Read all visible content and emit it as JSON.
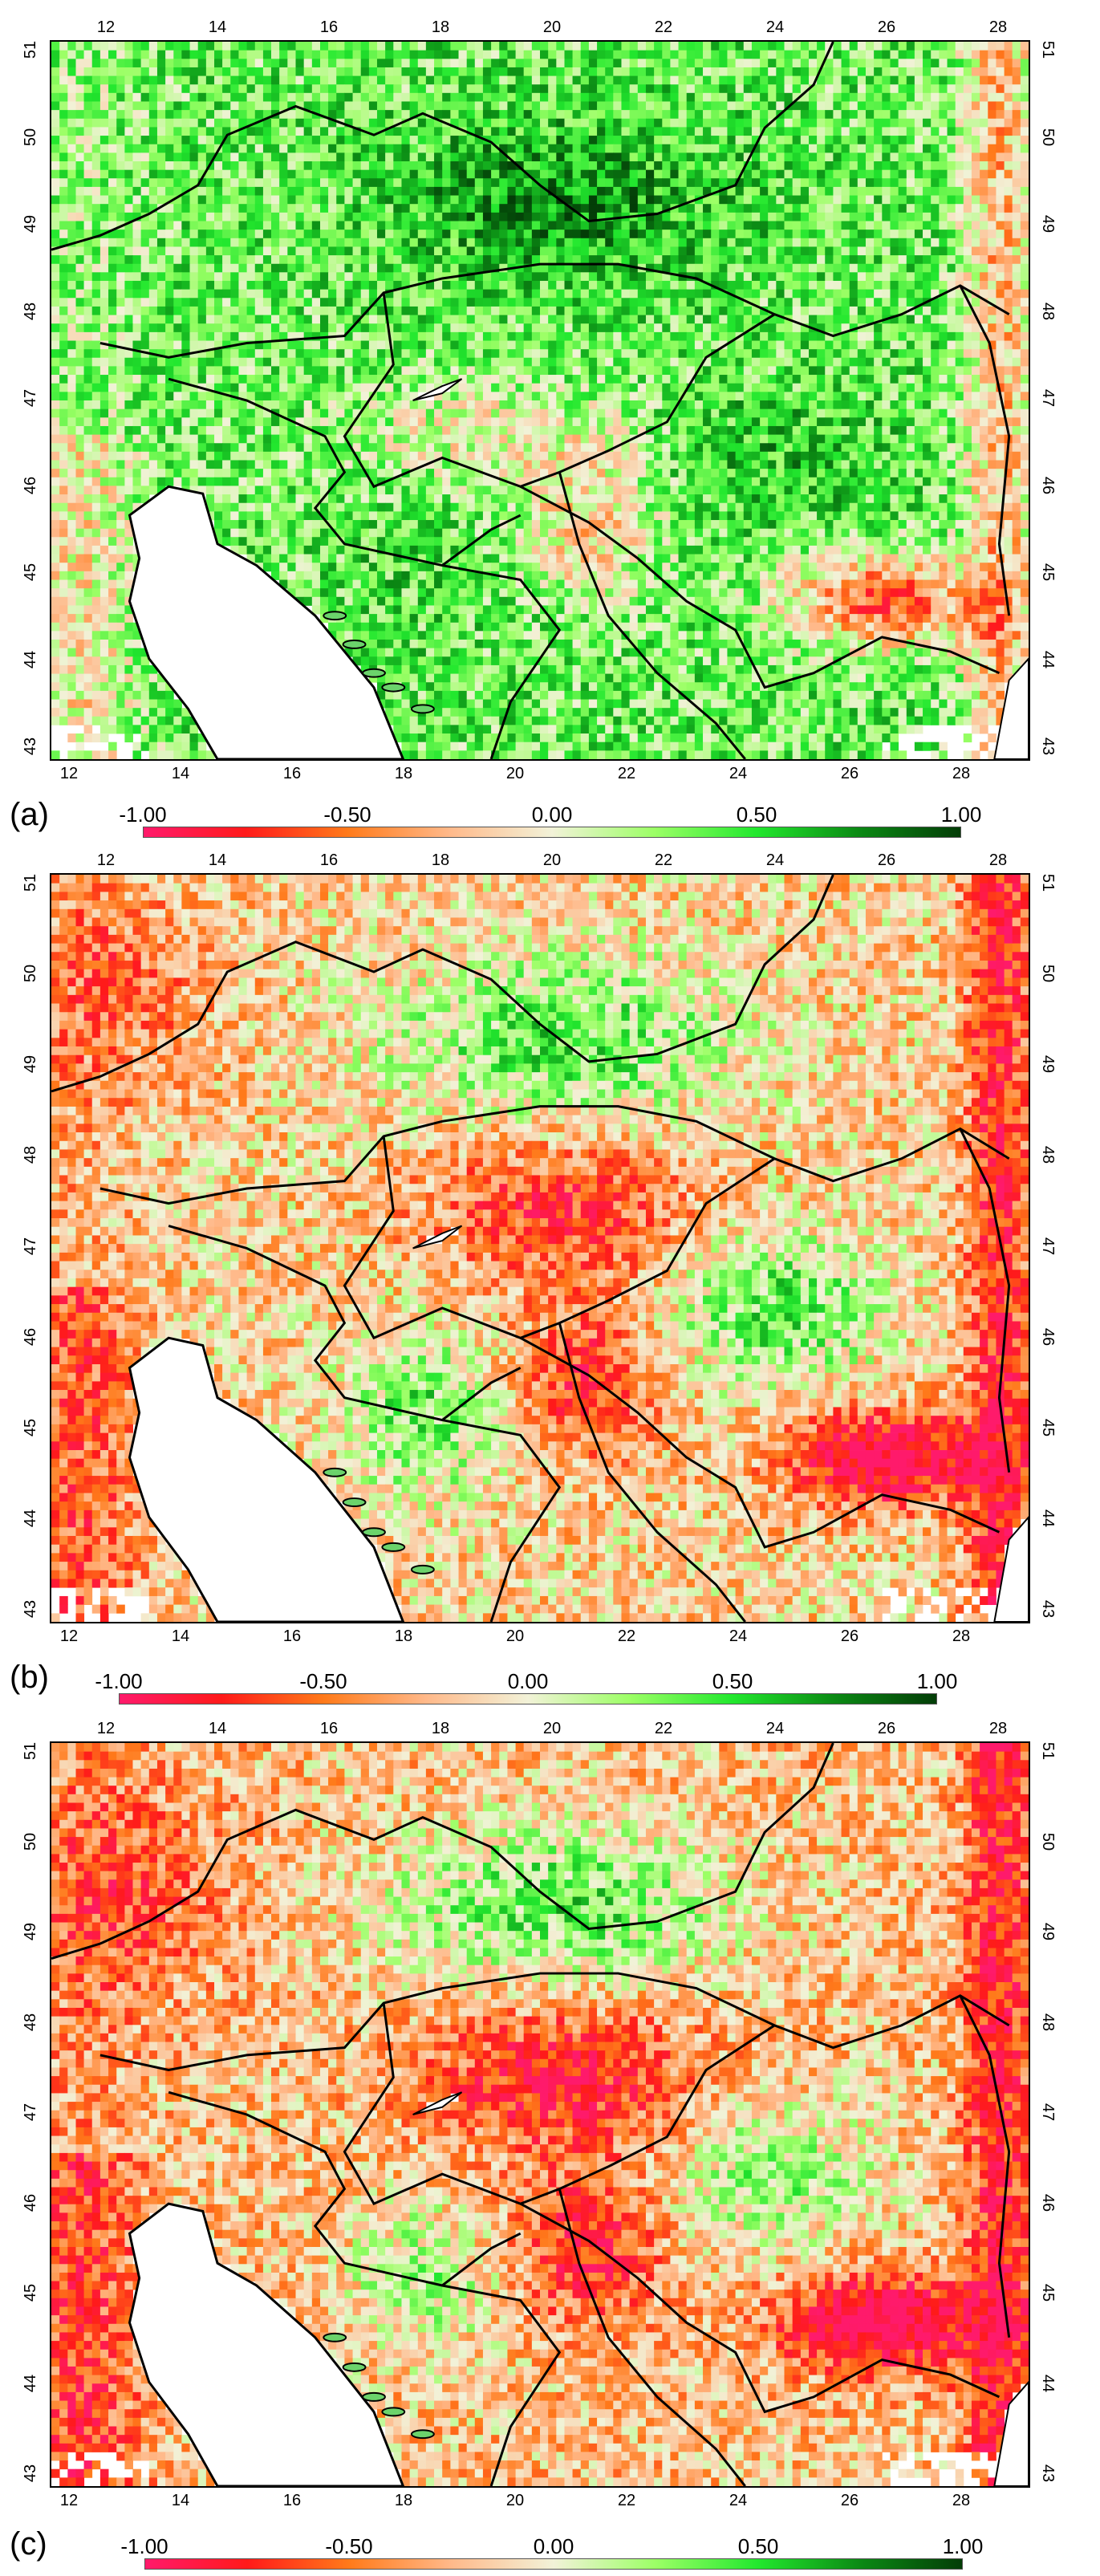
{
  "colorbar": {
    "stops": [
      "#ff1a6b",
      "#ff1a1a",
      "#ff7a1a",
      "#ffb98a",
      "#f2f2d8",
      "#9cff66",
      "#22e82e",
      "#0b8a14",
      "#033d07"
    ],
    "labels": [
      "-1.00",
      "-0.50",
      "0.00",
      "0.50",
      "1.00"
    ]
  },
  "axes": {
    "lon_ticks": [
      "12",
      "14",
      "16",
      "18",
      "20",
      "22",
      "24",
      "26",
      "28"
    ],
    "lat_ticks": [
      "51",
      "50",
      "49",
      "48",
      "47",
      "46",
      "45",
      "44",
      "43"
    ]
  },
  "panels": [
    {
      "id": "a",
      "label": "(a)",
      "lon_ticks_bottom": [
        "12",
        "14",
        "16",
        "18",
        "20",
        "22",
        "24",
        "26",
        "28"
      ]
    },
    {
      "id": "b",
      "label": "(b)",
      "lon_ticks_bottom": [
        "12",
        "14",
        "16",
        "18",
        "20",
        "22",
        "24",
        "26",
        "28"
      ]
    },
    {
      "id": "c",
      "label": "(c)",
      "lon_ticks_bottom": [
        "12",
        "14",
        "16",
        "18",
        "20",
        "22",
        "24",
        "26",
        "28"
      ]
    }
  ],
  "legend_colors": {
    "land_base_a": "#4fdc4f",
    "land_base_b": "#f08a4a",
    "land_base_c": "#ef7a45",
    "border": "#000000",
    "sea": "#ffffff"
  }
}
